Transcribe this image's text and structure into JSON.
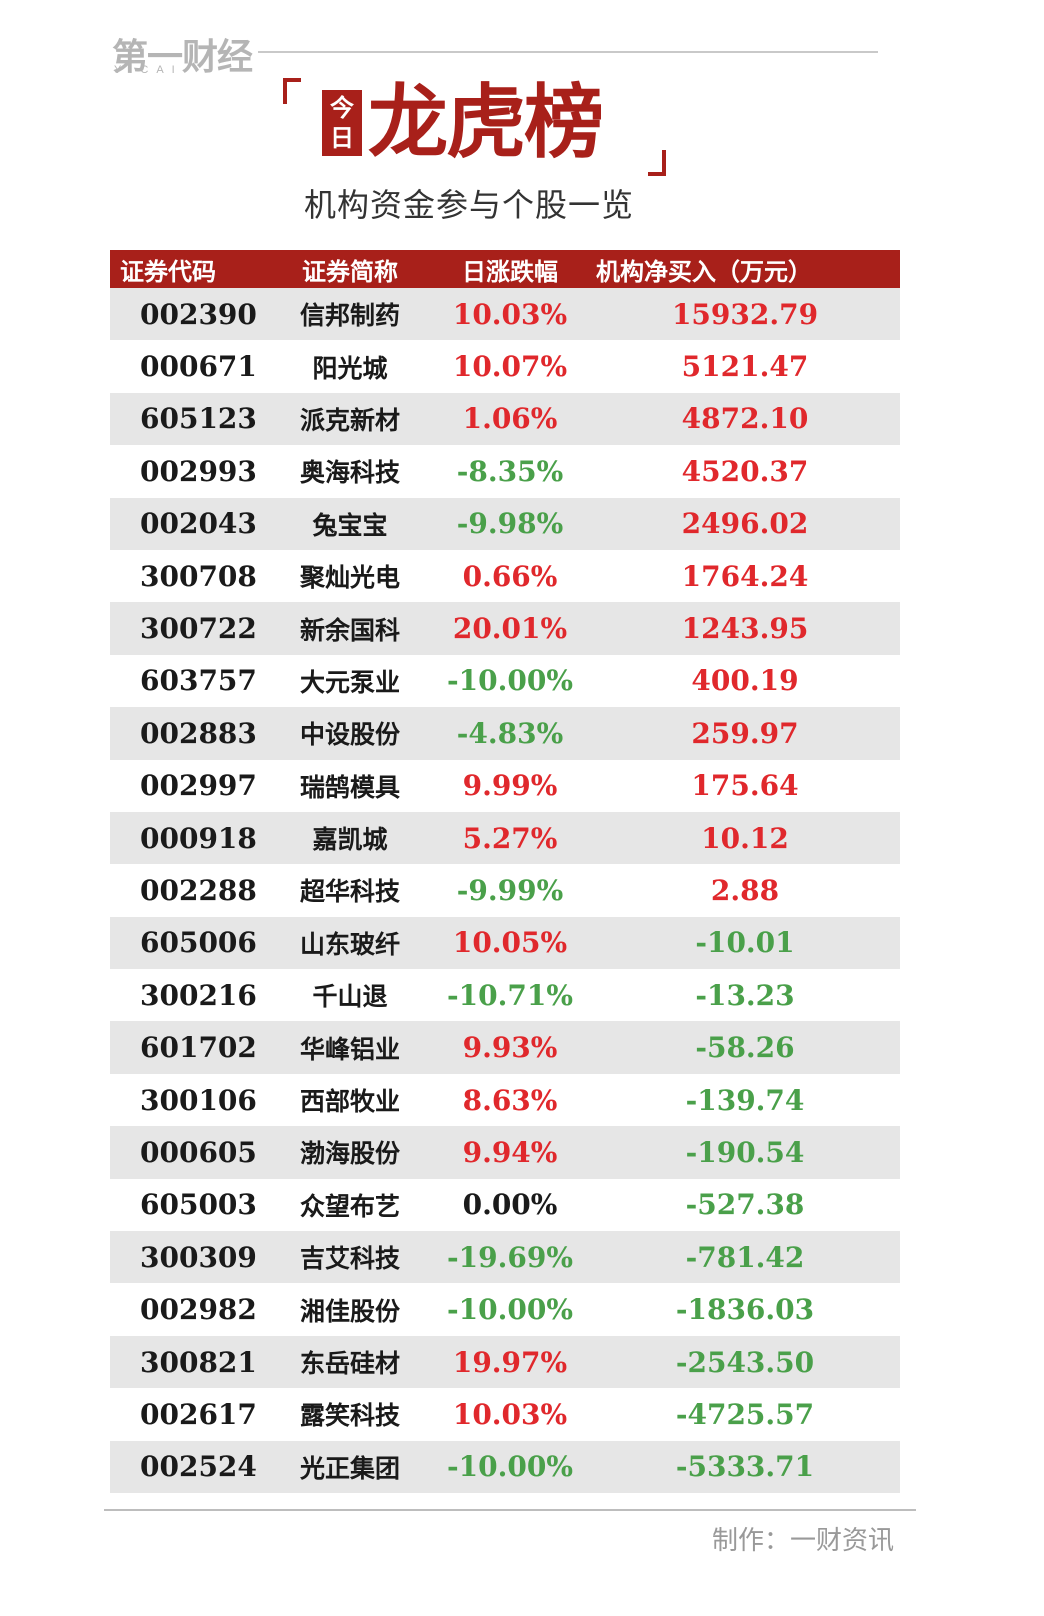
{
  "brand": {
    "logo": "第一财经",
    "logo_sub": "YICAI"
  },
  "title": {
    "today": [
      "今",
      "日"
    ],
    "main": "龙虎榜",
    "subtitle": "机构资金参与个股一览"
  },
  "table": {
    "headers": [
      "证券代码",
      "证券简称",
      "日涨跌幅",
      "机构净买入（万元）"
    ],
    "rows": [
      {
        "code": "002390",
        "name": "信邦制药",
        "change": "10.03%",
        "net": "15932.79"
      },
      {
        "code": "000671",
        "name": "阳光城",
        "change": "10.07%",
        "net": "5121.47"
      },
      {
        "code": "605123",
        "name": "派克新材",
        "change": "1.06%",
        "net": "4872.10"
      },
      {
        "code": "002993",
        "name": "奥海科技",
        "change": "-8.35%",
        "net": "4520.37"
      },
      {
        "code": "002043",
        "name": "兔宝宝",
        "change": "-9.98%",
        "net": "2496.02"
      },
      {
        "code": "300708",
        "name": "聚灿光电",
        "change": "0.66%",
        "net": "1764.24"
      },
      {
        "code": "300722",
        "name": "新余国科",
        "change": "20.01%",
        "net": "1243.95"
      },
      {
        "code": "603757",
        "name": "大元泵业",
        "change": "-10.00%",
        "net": "400.19"
      },
      {
        "code": "002883",
        "name": "中设股份",
        "change": "-4.83%",
        "net": "259.97"
      },
      {
        "code": "002997",
        "name": "瑞鹄模具",
        "change": "9.99%",
        "net": "175.64"
      },
      {
        "code": "000918",
        "name": "嘉凯城",
        "change": "5.27%",
        "net": "10.12"
      },
      {
        "code": "002288",
        "name": "超华科技",
        "change": "-9.99%",
        "net": "2.88"
      },
      {
        "code": "605006",
        "name": "山东玻纤",
        "change": "10.05%",
        "net": "-10.01"
      },
      {
        "code": "300216",
        "name": "千山退",
        "change": "-10.71%",
        "net": "-13.23"
      },
      {
        "code": "601702",
        "name": "华峰铝业",
        "change": "9.93%",
        "net": "-58.26"
      },
      {
        "code": "300106",
        "name": "西部牧业",
        "change": "8.63%",
        "net": "-139.74"
      },
      {
        "code": "000605",
        "name": "渤海股份",
        "change": "9.94%",
        "net": "-190.54"
      },
      {
        "code": "605003",
        "name": "众望布艺",
        "change": "0.00%",
        "net": "-527.38"
      },
      {
        "code": "300309",
        "name": "吉艾科技",
        "change": "-19.69%",
        "net": "-781.42"
      },
      {
        "code": "002982",
        "name": "湘佳股份",
        "change": "-10.00%",
        "net": "-1836.03"
      },
      {
        "code": "300821",
        "name": "东岳硅材",
        "change": "19.97%",
        "net": "-2543.50"
      },
      {
        "code": "002617",
        "name": "露笑科技",
        "change": "10.03%",
        "net": "-4725.57"
      },
      {
        "code": "002524",
        "name": "光正集团",
        "change": "-10.00%",
        "net": "-5333.71"
      }
    ]
  },
  "footer": {
    "credit": "制作：一财资讯"
  },
  "colors": {
    "accent": "#a8201a",
    "up": "#e0282c",
    "down": "#4aa04a",
    "row_alt": "#e6e6e6"
  }
}
